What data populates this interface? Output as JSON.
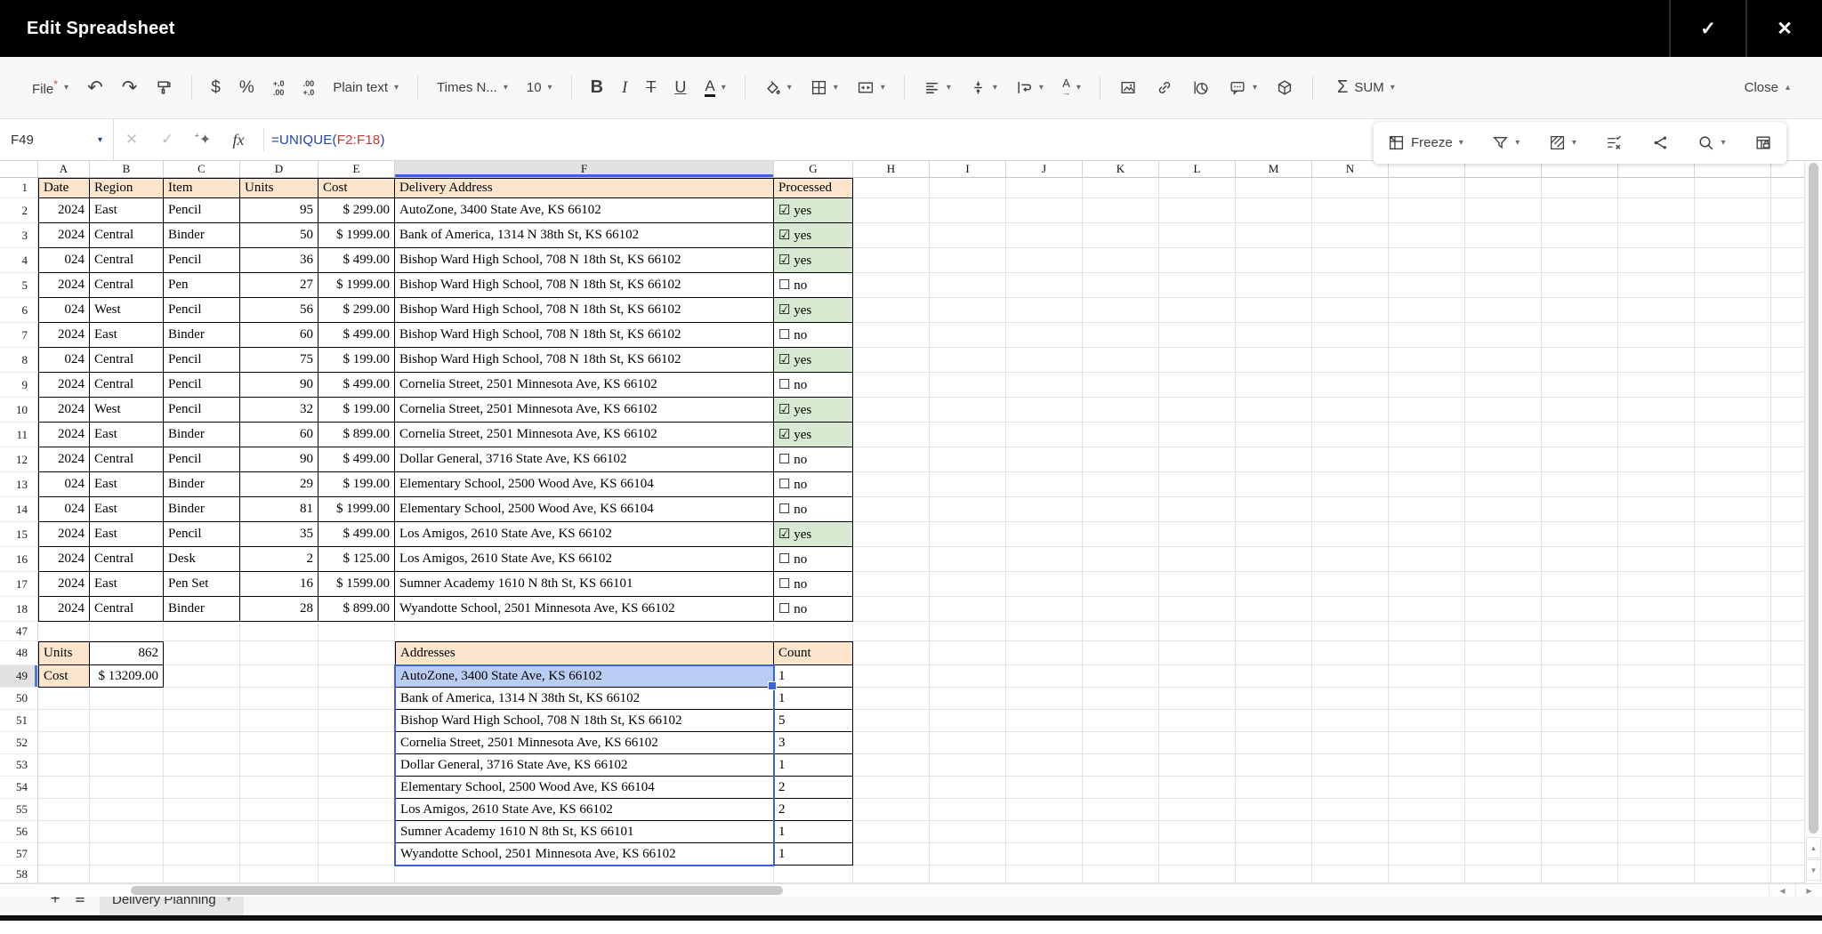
{
  "titlebar": {
    "title": "Edit Spreadsheet"
  },
  "icons": {
    "check": "✓",
    "close_x": "✕",
    "undo": "↶",
    "redo": "↷",
    "currency": "$",
    "percent": "%",
    "bold": "B",
    "italic": "I",
    "strike": "T",
    "underline": "U",
    "font_color": "A",
    "sigma": "Σ",
    "caret_down": "▾",
    "caret_up": "▴",
    "sparkle": "✦",
    "sparkle_plus": "+",
    "checkbox_checked": "☑",
    "checkbox_unchecked": "☐",
    "scroll_up": "▲",
    "scroll_down": "▼",
    "scroll_left": "◀",
    "scroll_right": "▶"
  },
  "toolbar": {
    "file": "File",
    "file_mark": "*",
    "dec1_top": "+.0",
    "dec1_bot": ".00",
    "dec2_top": ".00",
    "dec2_bot": "+.0",
    "paragraph_style": "Plain text",
    "font_name": "Times N...",
    "font_size": "10",
    "sum_label": "SUM",
    "close_label": "Close",
    "orientation_letter": "A",
    "orientation_arrow": "→"
  },
  "formula_bar": {
    "cell_ref": "F49",
    "fx": "fx",
    "formula_prefix": "=UNIQUE(",
    "formula_range": "F2:F18",
    "formula_suffix": ")"
  },
  "quick_bar": {
    "freeze": "Freeze"
  },
  "grid": {
    "columns": [
      "A",
      "B",
      "C",
      "D",
      "E",
      "F",
      "G",
      "H",
      "I",
      "J",
      "K",
      "L",
      "M",
      "N"
    ],
    "active_column": "F",
    "header_row": {
      "n": "1",
      "cells": [
        "Date",
        "Region",
        "Item",
        "Units",
        "Cost",
        "Delivery Address",
        "Processed"
      ]
    },
    "rows": [
      {
        "n": "2",
        "a": "2024",
        "b": "East",
        "c": "Pencil",
        "d": "95",
        "e": "$ 299.00",
        "f": "AutoZone, 3400 State Ave, KS 66102",
        "g": "yes",
        "checked": true
      },
      {
        "n": "3",
        "a": "2024",
        "b": "Central",
        "c": "Binder",
        "d": "50",
        "e": "$ 1999.00",
        "f": "Bank of America, 1314 N 38th St, KS 66102",
        "g": "yes",
        "checked": true
      },
      {
        "n": "4",
        "a": "024",
        "b": "Central",
        "c": "Pencil",
        "d": "36",
        "e": "$ 499.00",
        "f": "Bishop Ward High School, 708 N 18th St, KS 66102",
        "g": "yes",
        "checked": true
      },
      {
        "n": "5",
        "a": "2024",
        "b": "Central",
        "c": "Pen",
        "d": "27",
        "e": "$ 1999.00",
        "f": "Bishop Ward High School, 708 N 18th St, KS 66102",
        "g": "no",
        "checked": false
      },
      {
        "n": "6",
        "a": "024",
        "b": "West",
        "c": "Pencil",
        "d": "56",
        "e": "$ 299.00",
        "f": "Bishop Ward High School, 708 N 18th St, KS 66102",
        "g": "yes",
        "checked": true
      },
      {
        "n": "7",
        "a": "2024",
        "b": "East",
        "c": "Binder",
        "d": "60",
        "e": "$ 499.00",
        "f": "Bishop Ward High School, 708 N 18th St, KS 66102",
        "g": "no",
        "checked": false
      },
      {
        "n": "8",
        "a": "024",
        "b": "Central",
        "c": "Pencil",
        "d": "75",
        "e": "$ 199.00",
        "f": "Bishop Ward High School, 708 N 18th St, KS 66102",
        "g": "yes",
        "checked": true
      },
      {
        "n": "9",
        "a": "2024",
        "b": "Central",
        "c": "Pencil",
        "d": "90",
        "e": "$ 499.00",
        "f": "Cornelia Street, 2501 Minnesota Ave, KS 66102",
        "g": "no",
        "checked": false
      },
      {
        "n": "10",
        "a": "2024",
        "b": "West",
        "c": "Pencil",
        "d": "32",
        "e": "$ 199.00",
        "f": "Cornelia Street, 2501 Minnesota Ave, KS 66102",
        "g": "yes",
        "checked": true
      },
      {
        "n": "11",
        "a": "2024",
        "b": "East",
        "c": "Binder",
        "d": "60",
        "e": "$ 899.00",
        "f": "Cornelia Street, 2501 Minnesota Ave, KS 66102",
        "g": "yes",
        "checked": true
      },
      {
        "n": "12",
        "a": "2024",
        "b": "Central",
        "c": "Pencil",
        "d": "90",
        "e": "$ 499.00",
        "f": "Dollar General, 3716 State Ave, KS 66102",
        "g": "no",
        "checked": false
      },
      {
        "n": "13",
        "a": "024",
        "b": "East",
        "c": "Binder",
        "d": "29",
        "e": "$ 199.00",
        "f": "Elementary School, 2500 Wood Ave, KS 66104",
        "g": "no",
        "checked": false
      },
      {
        "n": "14",
        "a": "024",
        "b": "East",
        "c": "Binder",
        "d": "81",
        "e": "$ 1999.00",
        "f": "Elementary School, 2500 Wood Ave, KS 66104",
        "g": "no",
        "checked": false
      },
      {
        "n": "15",
        "a": "2024",
        "b": "East",
        "c": "Pencil",
        "d": "35",
        "e": "$ 499.00",
        "f": "Los Amigos, 2610 State Ave, KS 66102",
        "g": "yes",
        "checked": true
      },
      {
        "n": "16",
        "a": "2024",
        "b": "Central",
        "c": "Desk",
        "d": "2",
        "e": "$ 125.00",
        "f": "Los Amigos, 2610 State Ave, KS 66102",
        "g": "no",
        "checked": false
      },
      {
        "n": "17",
        "a": "2024",
        "b": "East",
        "c": "Pen Set",
        "d": "16",
        "e": "$ 1599.00",
        "f": "Sumner Academy 1610 N 8th St, KS 66101",
        "g": "no",
        "checked": false
      },
      {
        "n": "18",
        "a": "2024",
        "b": "Central",
        "c": "Binder",
        "d": "28",
        "e": "$ 899.00",
        "f": "Wyandotte School, 2501 Minnesota Ave, KS 66102",
        "g": "no",
        "checked": false
      }
    ],
    "lower": [
      {
        "n": "47"
      },
      {
        "n": "48",
        "a": "Units",
        "b": "862",
        "f": "Addresses",
        "g": "Count",
        "head": true
      },
      {
        "n": "49",
        "a": "Cost",
        "b": "$ 13209.00",
        "f": "AutoZone, 3400 State Ave, KS 66102",
        "g": "1",
        "sel": true
      },
      {
        "n": "50",
        "f": "Bank of America, 1314 N 38th St, KS 66102",
        "g": "1"
      },
      {
        "n": "51",
        "f": "Bishop Ward High School, 708 N 18th St, KS 66102",
        "g": "5"
      },
      {
        "n": "52",
        "f": "Cornelia Street, 2501 Minnesota Ave, KS 66102",
        "g": "3"
      },
      {
        "n": "53",
        "f": "Dollar General, 3716 State Ave, KS 66102",
        "g": "1"
      },
      {
        "n": "54",
        "f": "Elementary School, 2500 Wood Ave, KS 66104",
        "g": "2"
      },
      {
        "n": "55",
        "f": "Los Amigos, 2610 State Ave, KS 66102",
        "g": "2"
      },
      {
        "n": "56",
        "f": "Sumner Academy 1610 N 8th St, KS 66101",
        "g": "1"
      },
      {
        "n": "57",
        "f": "Wyandotte School, 2501 Minnesota Ave, KS 66102",
        "g": "1"
      },
      {
        "n": "58"
      }
    ]
  },
  "tab_bar": {
    "add": "+",
    "menu": "≡",
    "sheet": "Delivery Planning"
  },
  "colors": {
    "titlebar_bg": "#000000",
    "accent_blue": "#3c64d8",
    "table_header_fill": "#fce5cd",
    "processed_yes_fill": "#d9ead3",
    "selection_fill": "#b9cdf2",
    "formula_function_blue": "#1f45a8",
    "formula_reference_red": "#c5393c"
  }
}
